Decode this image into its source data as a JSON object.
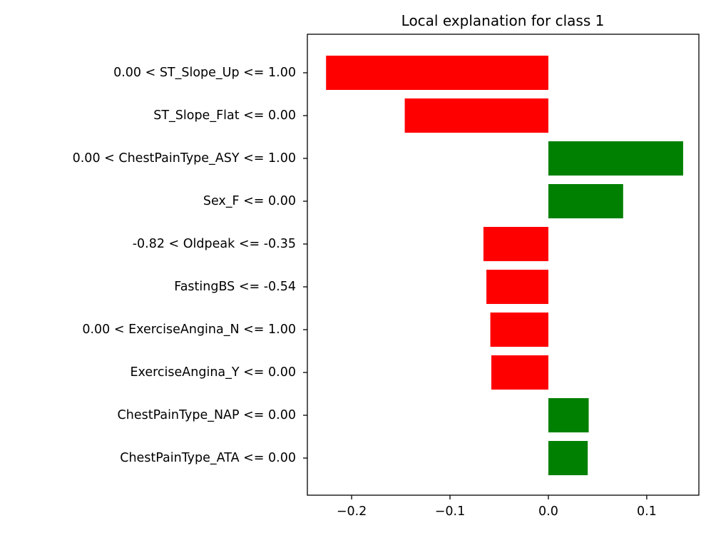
{
  "chart_data": {
    "type": "bar",
    "orientation": "horizontal",
    "title": "Local explanation for class 1",
    "xlabel": "",
    "ylabel": "",
    "xlim": [
      -0.245,
      0.153
    ],
    "grid": false,
    "xticks": [
      {
        "value": -0.2,
        "label": "−0.2"
      },
      {
        "value": -0.1,
        "label": "−0.1"
      },
      {
        "value": 0.0,
        "label": "0.0"
      },
      {
        "value": 0.1,
        "label": "0.1"
      }
    ],
    "categories": [
      "0.00 < ST_Slope_Up <= 1.00",
      "ST_Slope_Flat <= 0.00",
      "0.00 < ChestPainType_ASY <= 1.00",
      "Sex_F <= 0.00",
      "-0.82 < Oldpeak <= -0.35",
      "FastingBS <= -0.54",
      "0.00 < ExerciseAngina_N <= 1.00",
      "ExerciseAngina_Y <= 0.00",
      "ChestPainType_NAP <= 0.00",
      "ChestPainType_ATA <= 0.00"
    ],
    "values": [
      -0.226,
      -0.146,
      0.137,
      0.076,
      -0.066,
      -0.063,
      -0.059,
      -0.058,
      0.041,
      0.04
    ],
    "colors": {
      "positive": "#008000",
      "negative": "#ff0000"
    }
  }
}
